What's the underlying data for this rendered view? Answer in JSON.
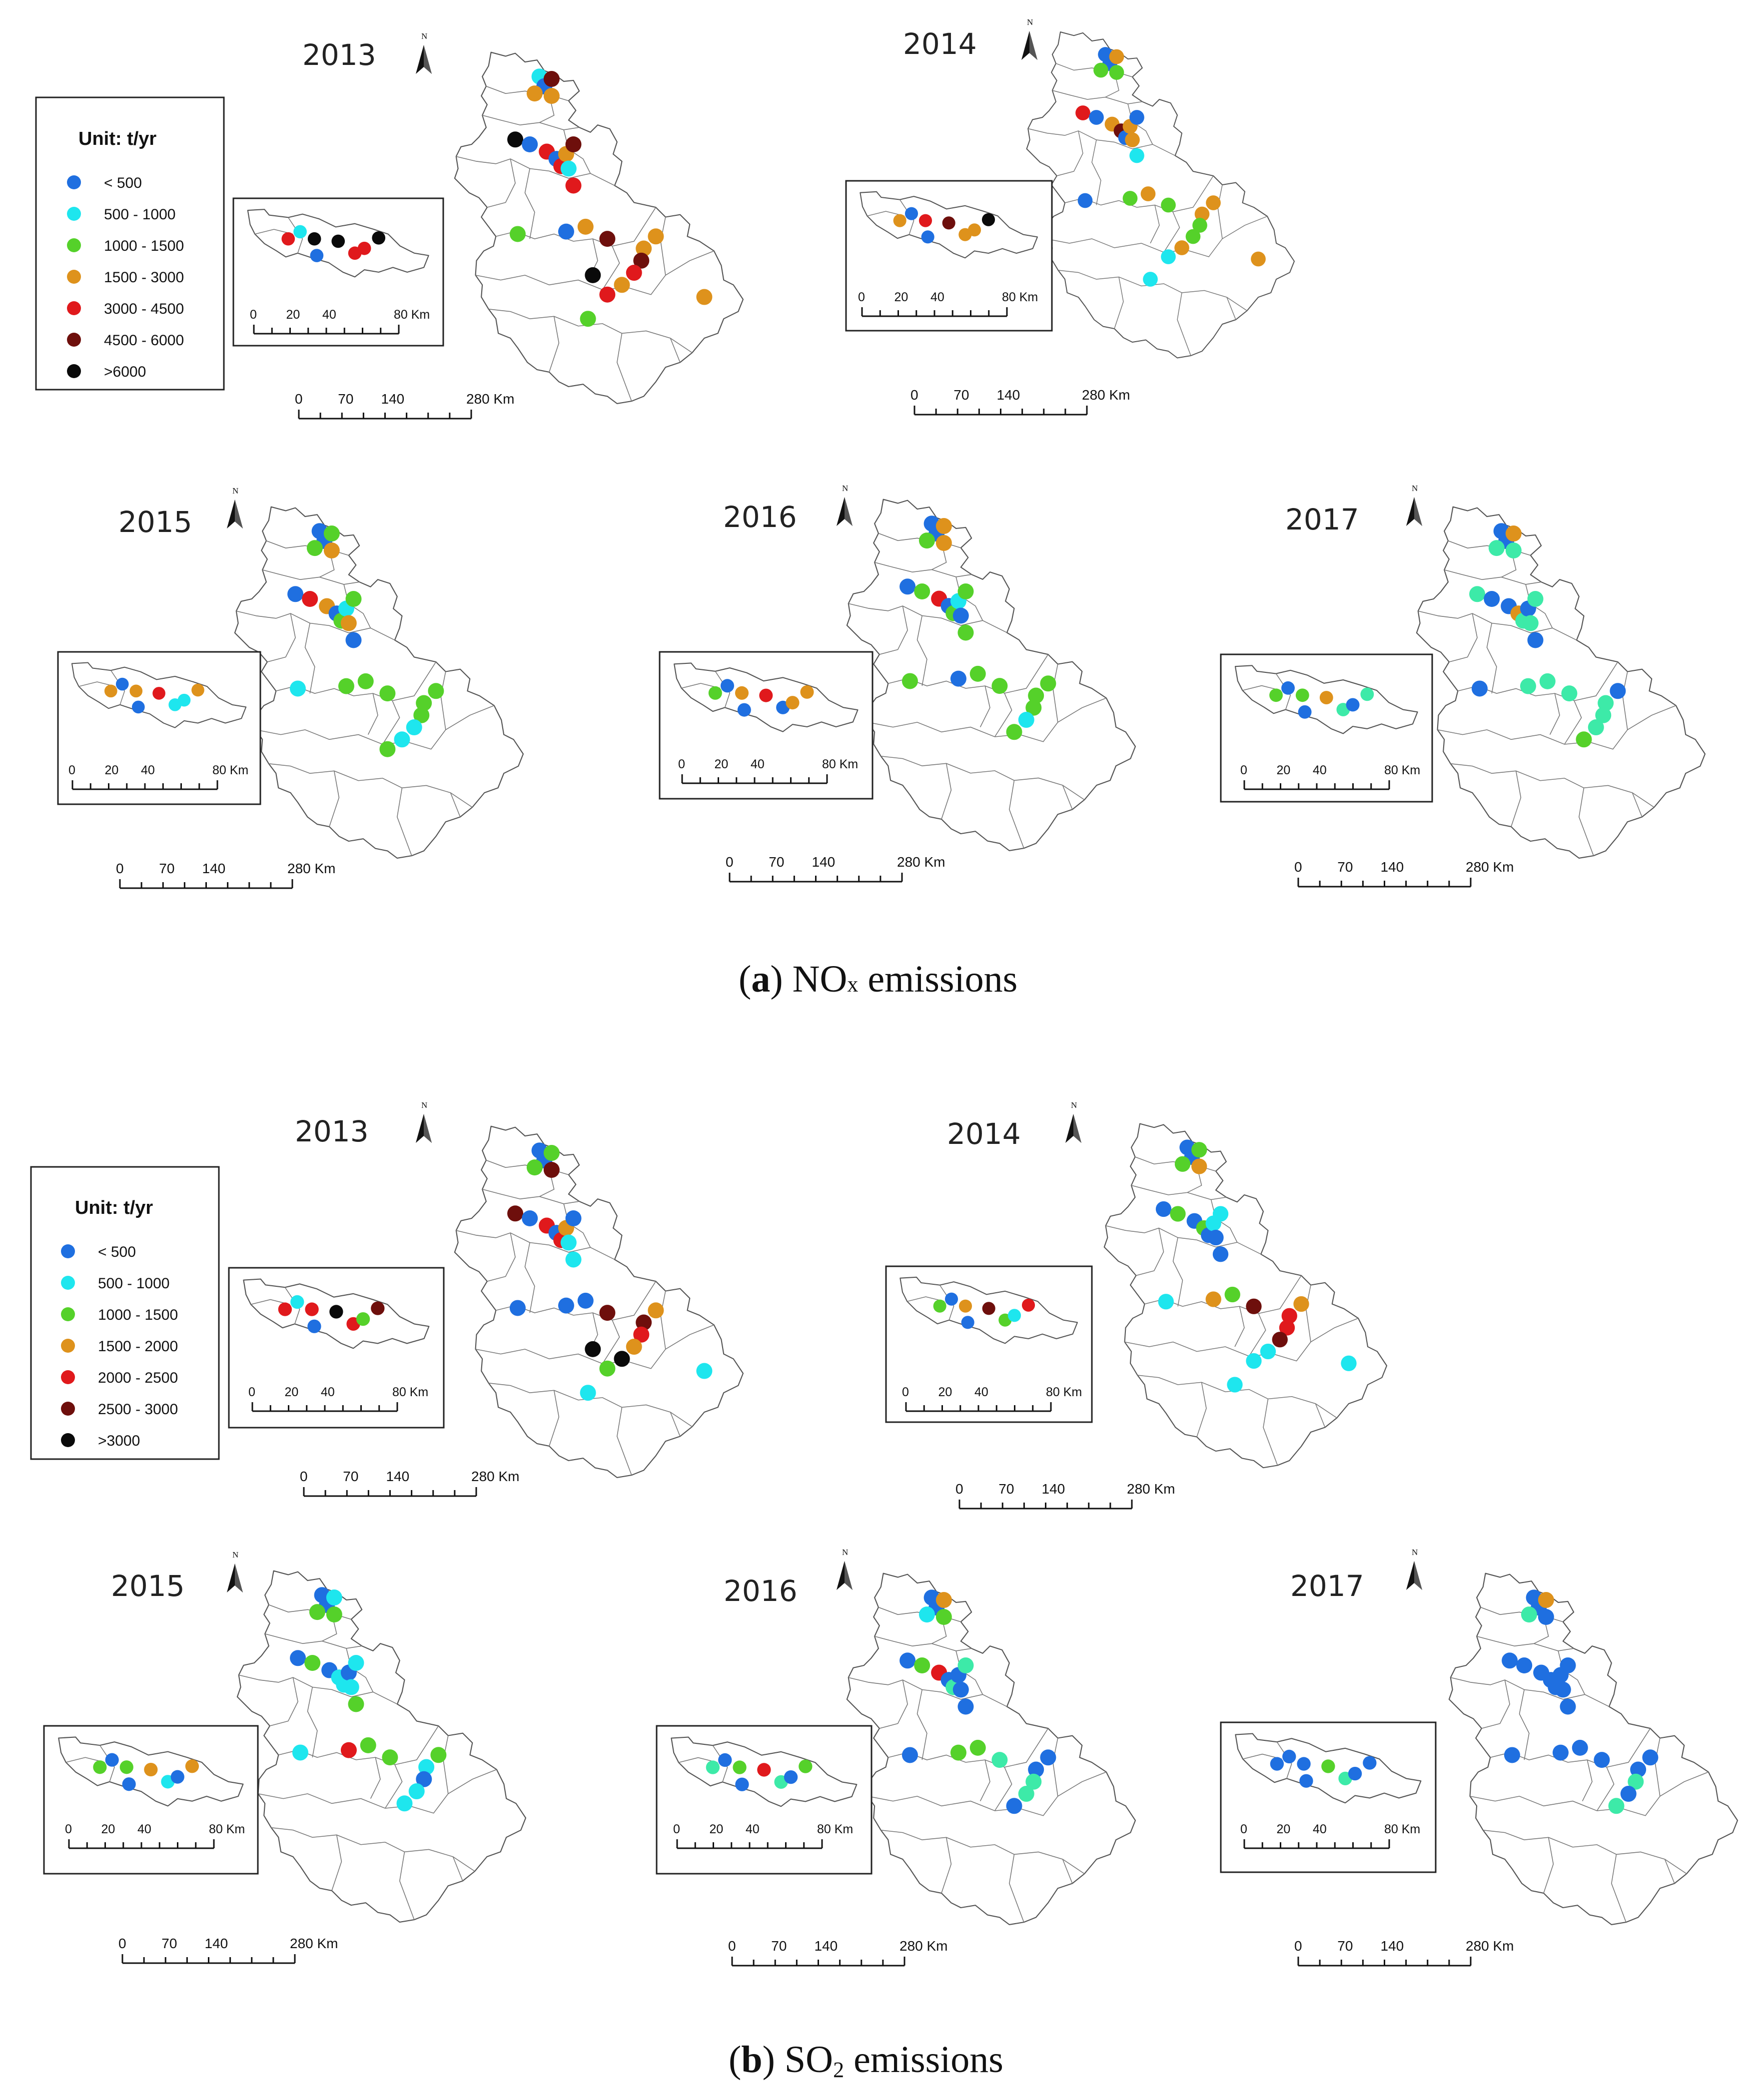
{
  "figure": {
    "caption_a": {
      "letter": "a",
      "lparen": "(",
      "rparen": ")",
      "text_pre": " NO",
      "sub": "x",
      "text_post": " emissions"
    },
    "caption_b": {
      "letter": "b",
      "lparen": "(",
      "rparen": ")",
      "text_pre": " SO",
      "sub": "2",
      "text_post": " emissions"
    }
  },
  "colors": {
    "c0": "#1f6fe0",
    "c1": "#1ee6ee",
    "c2": "#55d12a",
    "c3": "#de921c",
    "c4": "#e0191c",
    "c5": "#6e0f0c",
    "c6": "#0a0a0a",
    "teal": "#3deaa8"
  },
  "legend_a": {
    "title": "Unit: t/yr",
    "items": [
      {
        "label": "< 500",
        "color": "#1f6fe0"
      },
      {
        "label": "500 - 1000",
        "color": "#1ee6ee"
      },
      {
        "label": "1000 - 1500",
        "color": "#55d12a"
      },
      {
        "label": "1500 - 3000",
        "color": "#de921c"
      },
      {
        "label": "3000 - 4500",
        "color": "#e0191c"
      },
      {
        "label": "4500 - 6000",
        "color": "#6e0f0c"
      },
      {
        "label": ">6000",
        "color": "#0a0a0a"
      }
    ]
  },
  "legend_b": {
    "title": "Unit: t/yr",
    "items": [
      {
        "label": "< 500",
        "color": "#1f6fe0"
      },
      {
        "label": "500 - 1000",
        "color": "#1ee6ee"
      },
      {
        "label": "1000 - 1500",
        "color": "#55d12a"
      },
      {
        "label": "1500 - 2000",
        "color": "#de921c"
      },
      {
        "label": "2000 - 2500",
        "color": "#e0191c"
      },
      {
        "label": "2500 - 3000",
        "color": "#6e0f0c"
      },
      {
        "label": ">3000",
        "color": "#0a0a0a"
      }
    ]
  },
  "north_label": "N",
  "scale_main": {
    "t0": "0",
    "t1": "70",
    "t2": "140",
    "t3": "280 Km"
  },
  "scale_inset": {
    "t0": "0",
    "t1": "20",
    "t2": "40",
    "t3": "80 Km"
  },
  "panels": [
    {
      "id": "a2013",
      "group": "NOx",
      "year": "2013",
      "points": [
        [
          1,
          "c1"
        ],
        [
          2,
          "c0"
        ],
        [
          3,
          "c5"
        ],
        [
          4,
          "c3"
        ],
        [
          5,
          "c3"
        ],
        [
          6,
          "c6"
        ],
        [
          7,
          "c0"
        ],
        [
          8,
          "c4"
        ],
        [
          9,
          "c0"
        ],
        [
          10,
          "c4"
        ],
        [
          11,
          "c3"
        ],
        [
          12,
          "c5"
        ],
        [
          13,
          "c1"
        ],
        [
          14,
          "c4"
        ],
        [
          15,
          "c2"
        ],
        [
          16,
          "c0"
        ],
        [
          17,
          "c3"
        ],
        [
          18,
          "c5"
        ],
        [
          19,
          "c3"
        ],
        [
          20,
          "c3"
        ],
        [
          21,
          "c5"
        ],
        [
          22,
          "c4"
        ],
        [
          23,
          "c3"
        ],
        [
          24,
          "c4"
        ],
        [
          25,
          "c2"
        ],
        [
          26,
          "c3"
        ],
        [
          27,
          "c6"
        ]
      ],
      "inset": [
        [
          1,
          "c4"
        ],
        [
          2,
          "c1"
        ],
        [
          3,
          "c6"
        ],
        [
          4,
          "c0"
        ],
        [
          5,
          "c6"
        ],
        [
          6,
          "c4"
        ],
        [
          7,
          "c4"
        ],
        [
          8,
          "c6"
        ]
      ]
    },
    {
      "id": "a2014",
      "group": "NOx",
      "year": "2014",
      "points": [
        [
          1,
          "c0"
        ],
        [
          2,
          "c0"
        ],
        [
          3,
          "c3"
        ],
        [
          4,
          "c2"
        ],
        [
          5,
          "c2"
        ],
        [
          6,
          "c4"
        ],
        [
          7,
          "c0"
        ],
        [
          8,
          "c3"
        ],
        [
          9,
          "c5"
        ],
        [
          10,
          "c0"
        ],
        [
          11,
          "c3"
        ],
        [
          12,
          "c0"
        ],
        [
          13,
          "c3"
        ],
        [
          14,
          "c1"
        ],
        [
          15,
          "c0"
        ],
        [
          16,
          "c2"
        ],
        [
          17,
          "c3"
        ],
        [
          18,
          "c2"
        ],
        [
          19,
          "c3"
        ],
        [
          20,
          "c3"
        ],
        [
          21,
          "c2"
        ],
        [
          22,
          "c2"
        ],
        [
          23,
          "c3"
        ],
        [
          24,
          "c1"
        ],
        [
          25,
          "c1"
        ],
        [
          26,
          "c3"
        ]
      ],
      "inset": [
        [
          1,
          "c3"
        ],
        [
          2,
          "c0"
        ],
        [
          3,
          "c4"
        ],
        [
          4,
          "c0"
        ],
        [
          5,
          "c5"
        ],
        [
          6,
          "c3"
        ],
        [
          7,
          "c3"
        ],
        [
          8,
          "c6"
        ]
      ]
    },
    {
      "id": "a2015",
      "group": "NOx",
      "year": "2015",
      "points": [
        [
          1,
          "c0"
        ],
        [
          2,
          "c0"
        ],
        [
          3,
          "c2"
        ],
        [
          4,
          "c2"
        ],
        [
          5,
          "c3"
        ],
        [
          6,
          "c0"
        ],
        [
          7,
          "c4"
        ],
        [
          8,
          "c3"
        ],
        [
          9,
          "c0"
        ],
        [
          10,
          "c2"
        ],
        [
          11,
          "c1"
        ],
        [
          12,
          "c2"
        ],
        [
          13,
          "c3"
        ],
        [
          14,
          "c0"
        ],
        [
          15,
          "c1"
        ],
        [
          16,
          "c2"
        ],
        [
          17,
          "c2"
        ],
        [
          18,
          "c2"
        ],
        [
          19,
          "c2"
        ],
        [
          20,
          "c2"
        ],
        [
          21,
          "c2"
        ],
        [
          22,
          "c1"
        ],
        [
          23,
          "c1"
        ],
        [
          24,
          "c2"
        ]
      ],
      "inset": [
        [
          1,
          "c3"
        ],
        [
          2,
          "c0"
        ],
        [
          3,
          "c3"
        ],
        [
          4,
          "c0"
        ],
        [
          5,
          "c4"
        ],
        [
          6,
          "c1"
        ],
        [
          7,
          "c1"
        ],
        [
          8,
          "c3"
        ]
      ]
    },
    {
      "id": "a2016",
      "group": "NOx",
      "year": "2016",
      "points": [
        [
          1,
          "c0"
        ],
        [
          2,
          "c0"
        ],
        [
          3,
          "c3"
        ],
        [
          4,
          "c2"
        ],
        [
          5,
          "c3"
        ],
        [
          6,
          "c0"
        ],
        [
          7,
          "c2"
        ],
        [
          8,
          "c4"
        ],
        [
          9,
          "c0"
        ],
        [
          10,
          "c2"
        ],
        [
          11,
          "c1"
        ],
        [
          12,
          "c2"
        ],
        [
          13,
          "c0"
        ],
        [
          14,
          "c2"
        ],
        [
          15,
          "c2"
        ],
        [
          16,
          "c0"
        ],
        [
          17,
          "c2"
        ],
        [
          18,
          "c2"
        ],
        [
          19,
          "c2"
        ],
        [
          20,
          "c2"
        ],
        [
          21,
          "c2"
        ],
        [
          22,
          "c1"
        ],
        [
          23,
          "c2"
        ]
      ],
      "inset": [
        [
          1,
          "c2"
        ],
        [
          2,
          "c0"
        ],
        [
          3,
          "c3"
        ],
        [
          4,
          "c0"
        ],
        [
          5,
          "c4"
        ],
        [
          6,
          "c0"
        ],
        [
          7,
          "c3"
        ],
        [
          8,
          "c3"
        ]
      ]
    },
    {
      "id": "a2017",
      "group": "NOx",
      "year": "2017",
      "points": [
        [
          1,
          "c0"
        ],
        [
          2,
          "c0"
        ],
        [
          3,
          "c3"
        ],
        [
          4,
          "teal"
        ],
        [
          5,
          "teal"
        ],
        [
          6,
          "teal"
        ],
        [
          7,
          "c0"
        ],
        [
          8,
          "c0"
        ],
        [
          9,
          "c3"
        ],
        [
          10,
          "teal"
        ],
        [
          11,
          "c0"
        ],
        [
          12,
          "teal"
        ],
        [
          13,
          "teal"
        ],
        [
          14,
          "c0"
        ],
        [
          15,
          "c0"
        ],
        [
          16,
          "teal"
        ],
        [
          17,
          "teal"
        ],
        [
          18,
          "teal"
        ],
        [
          19,
          "c0"
        ],
        [
          20,
          "teal"
        ],
        [
          21,
          "teal"
        ],
        [
          22,
          "teal"
        ],
        [
          23,
          "c2"
        ]
      ],
      "inset": [
        [
          1,
          "c2"
        ],
        [
          2,
          "c0"
        ],
        [
          3,
          "c2"
        ],
        [
          4,
          "c0"
        ],
        [
          5,
          "c3"
        ],
        [
          6,
          "teal"
        ],
        [
          7,
          "c0"
        ],
        [
          8,
          "teal"
        ]
      ]
    },
    {
      "id": "b2013",
      "group": "SO2",
      "year": "2013",
      "points": [
        [
          1,
          "c0"
        ],
        [
          2,
          "c0"
        ],
        [
          3,
          "c2"
        ],
        [
          4,
          "c2"
        ],
        [
          5,
          "c5"
        ],
        [
          6,
          "c5"
        ],
        [
          7,
          "c0"
        ],
        [
          8,
          "c4"
        ],
        [
          9,
          "c0"
        ],
        [
          10,
          "c4"
        ],
        [
          11,
          "c3"
        ],
        [
          12,
          "c0"
        ],
        [
          13,
          "c1"
        ],
        [
          14,
          "c1"
        ],
        [
          15,
          "c0"
        ],
        [
          16,
          "c0"
        ],
        [
          17,
          "c0"
        ],
        [
          18,
          "c5"
        ],
        [
          19,
          "c3"
        ],
        [
          20,
          "c5"
        ],
        [
          21,
          "c4"
        ],
        [
          22,
          "c3"
        ],
        [
          23,
          "c6"
        ],
        [
          24,
          "c2"
        ],
        [
          25,
          "c1"
        ],
        [
          26,
          "c1"
        ],
        [
          27,
          "c6"
        ]
      ],
      "inset": [
        [
          1,
          "c4"
        ],
        [
          2,
          "c1"
        ],
        [
          3,
          "c4"
        ],
        [
          4,
          "c0"
        ],
        [
          5,
          "c6"
        ],
        [
          6,
          "c4"
        ],
        [
          7,
          "c2"
        ],
        [
          8,
          "c5"
        ]
      ]
    },
    {
      "id": "b2014",
      "group": "SO2",
      "year": "2014",
      "points": [
        [
          1,
          "c0"
        ],
        [
          2,
          "c0"
        ],
        [
          3,
          "c2"
        ],
        [
          4,
          "c2"
        ],
        [
          5,
          "c3"
        ],
        [
          6,
          "c0"
        ],
        [
          7,
          "c2"
        ],
        [
          8,
          "c0"
        ],
        [
          9,
          "c2"
        ],
        [
          10,
          "c0"
        ],
        [
          11,
          "c1"
        ],
        [
          12,
          "c1"
        ],
        [
          13,
          "c0"
        ],
        [
          14,
          "c0"
        ],
        [
          15,
          "c1"
        ],
        [
          16,
          "c3"
        ],
        [
          17,
          "c2"
        ],
        [
          18,
          "c5"
        ],
        [
          19,
          "c3"
        ],
        [
          20,
          "c4"
        ],
        [
          21,
          "c4"
        ],
        [
          22,
          "c5"
        ],
        [
          23,
          "c1"
        ],
        [
          24,
          "c1"
        ],
        [
          25,
          "c1"
        ],
        [
          26,
          "c1"
        ]
      ],
      "inset": [
        [
          1,
          "c2"
        ],
        [
          2,
          "c0"
        ],
        [
          3,
          "c3"
        ],
        [
          4,
          "c0"
        ],
        [
          5,
          "c5"
        ],
        [
          6,
          "c2"
        ],
        [
          7,
          "c1"
        ],
        [
          8,
          "c4"
        ]
      ]
    },
    {
      "id": "b2015",
      "group": "SO2",
      "year": "2015",
      "points": [
        [
          1,
          "c0"
        ],
        [
          2,
          "c0"
        ],
        [
          3,
          "c1"
        ],
        [
          4,
          "c2"
        ],
        [
          5,
          "c2"
        ],
        [
          6,
          "c0"
        ],
        [
          7,
          "c2"
        ],
        [
          8,
          "c0"
        ],
        [
          9,
          "c1"
        ],
        [
          10,
          "c1"
        ],
        [
          11,
          "c0"
        ],
        [
          12,
          "c1"
        ],
        [
          13,
          "c1"
        ],
        [
          14,
          "c2"
        ],
        [
          15,
          "c1"
        ],
        [
          16,
          "c4"
        ],
        [
          17,
          "c2"
        ],
        [
          18,
          "c2"
        ],
        [
          19,
          "c2"
        ],
        [
          20,
          "c1"
        ],
        [
          21,
          "c0"
        ],
        [
          22,
          "c1"
        ],
        [
          23,
          "c1"
        ]
      ],
      "inset": [
        [
          1,
          "c2"
        ],
        [
          2,
          "c0"
        ],
        [
          3,
          "c2"
        ],
        [
          4,
          "c0"
        ],
        [
          5,
          "c3"
        ],
        [
          6,
          "c1"
        ],
        [
          7,
          "c0"
        ],
        [
          8,
          "c3"
        ]
      ]
    },
    {
      "id": "b2016",
      "group": "SO2",
      "year": "2016",
      "points": [
        [
          1,
          "c0"
        ],
        [
          2,
          "c0"
        ],
        [
          3,
          "c3"
        ],
        [
          4,
          "c1"
        ],
        [
          5,
          "c2"
        ],
        [
          6,
          "c0"
        ],
        [
          7,
          "c2"
        ],
        [
          8,
          "c4"
        ],
        [
          9,
          "c0"
        ],
        [
          10,
          "teal"
        ],
        [
          11,
          "c0"
        ],
        [
          12,
          "teal"
        ],
        [
          13,
          "c0"
        ],
        [
          14,
          "c0"
        ],
        [
          15,
          "c0"
        ],
        [
          16,
          "c2"
        ],
        [
          17,
          "c2"
        ],
        [
          18,
          "teal"
        ],
        [
          19,
          "c0"
        ],
        [
          20,
          "c0"
        ],
        [
          21,
          "teal"
        ],
        [
          22,
          "teal"
        ],
        [
          23,
          "c0"
        ]
      ],
      "inset": [
        [
          1,
          "teal"
        ],
        [
          2,
          "c0"
        ],
        [
          3,
          "c2"
        ],
        [
          4,
          "c0"
        ],
        [
          5,
          "c4"
        ],
        [
          6,
          "teal"
        ],
        [
          7,
          "c0"
        ],
        [
          8,
          "c2"
        ]
      ]
    },
    {
      "id": "b2017",
      "group": "SO2",
      "year": "2017",
      "points": [
        [
          1,
          "c0"
        ],
        [
          2,
          "c0"
        ],
        [
          3,
          "c3"
        ],
        [
          4,
          "teal"
        ],
        [
          5,
          "c0"
        ],
        [
          6,
          "c0"
        ],
        [
          7,
          "c0"
        ],
        [
          8,
          "c0"
        ],
        [
          9,
          "c0"
        ],
        [
          10,
          "c0"
        ],
        [
          11,
          "c0"
        ],
        [
          12,
          "c0"
        ],
        [
          13,
          "c0"
        ],
        [
          14,
          "c0"
        ],
        [
          15,
          "c0"
        ],
        [
          16,
          "c0"
        ],
        [
          17,
          "c0"
        ],
        [
          18,
          "c0"
        ],
        [
          19,
          "c0"
        ],
        [
          20,
          "c0"
        ],
        [
          21,
          "teal"
        ],
        [
          22,
          "c0"
        ],
        [
          23,
          "teal"
        ]
      ],
      "inset": [
        [
          1,
          "c0"
        ],
        [
          2,
          "c0"
        ],
        [
          3,
          "c0"
        ],
        [
          4,
          "c0"
        ],
        [
          5,
          "c2"
        ],
        [
          6,
          "teal"
        ],
        [
          7,
          "c0"
        ],
        [
          8,
          "c0"
        ]
      ]
    }
  ]
}
